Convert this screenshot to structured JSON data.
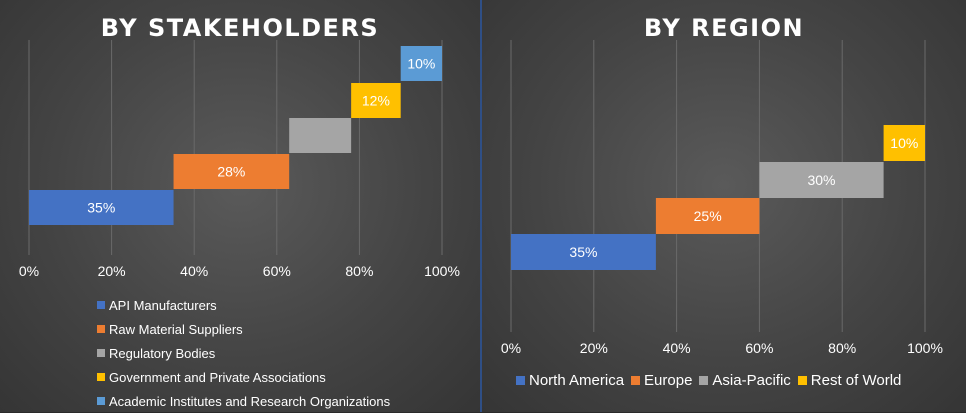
{
  "chart_data": [
    {
      "type": "bar",
      "title": "BY STAKEHOLDERS",
      "xlim": [
        0,
        100
      ],
      "tick_labels": [
        "0%",
        "20%",
        "40%",
        "60%",
        "80%",
        "100%"
      ],
      "grid": true,
      "legend_position": "bottom-left",
      "series": [
        {
          "name": "API Manufacturers",
          "start": 0,
          "value": 35,
          "label": "35%",
          "color": "#4472C4"
        },
        {
          "name": "Raw Material Suppliers",
          "start": 35,
          "value": 28,
          "label": "28%",
          "color": "#ED7D31"
        },
        {
          "name": "Regulatory Bodies",
          "start": 63,
          "value": 15,
          "label": "",
          "color": "#A5A5A5"
        },
        {
          "name": "Government and Private Associations",
          "start": 78,
          "value": 12,
          "label": "12%",
          "color": "#FFC000"
        },
        {
          "name": "Academic Institutes and Research Organizations",
          "start": 90,
          "value": 10,
          "label": "10%",
          "color": "#5B9BD5"
        }
      ]
    },
    {
      "type": "bar",
      "title": "BY REGION",
      "xlim": [
        0,
        100
      ],
      "tick_labels": [
        "0%",
        "20%",
        "40%",
        "60%",
        "80%",
        "100%"
      ],
      "grid": true,
      "legend_position": "bottom",
      "series": [
        {
          "name": "North America",
          "start": 0,
          "value": 35,
          "label": "35%",
          "color": "#4472C4"
        },
        {
          "name": "Europe",
          "start": 35,
          "value": 25,
          "label": "25%",
          "color": "#ED7D31"
        },
        {
          "name": "Asia-Pacific",
          "start": 60,
          "value": 30,
          "label": "30%",
          "color": "#A5A5A5"
        },
        {
          "name": "Rest of World",
          "start": 90,
          "value": 10,
          "label": "10%",
          "color": "#FFC000"
        }
      ]
    }
  ]
}
